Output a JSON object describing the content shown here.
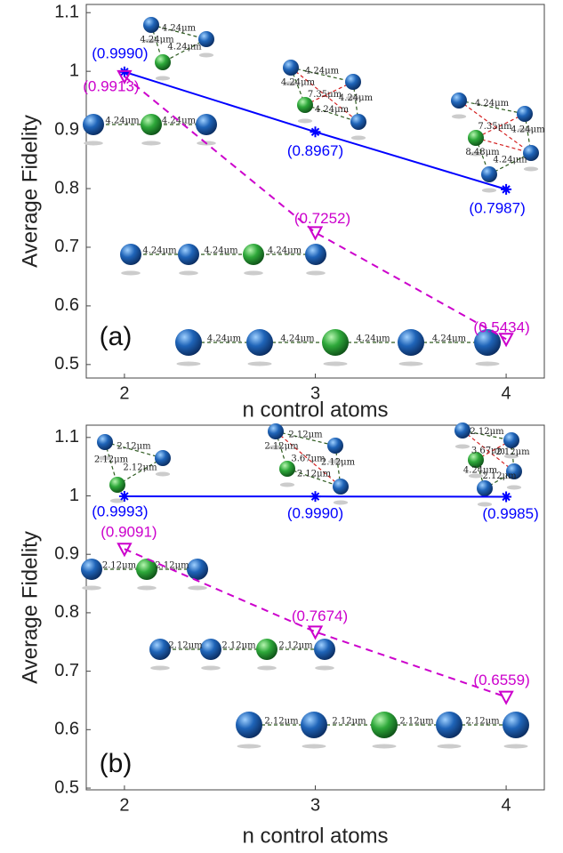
{
  "chart_data": [
    {
      "type": "line",
      "panel_label": "(a)",
      "xlabel": "n control atoms",
      "ylabel": "Average Fidelity",
      "x": [
        2,
        3,
        4
      ],
      "xlim": [
        1.8,
        4.2
      ],
      "xticks": [
        2,
        3,
        4
      ],
      "ylim": [
        0.477,
        1.114
      ],
      "yticks": [
        0.5,
        0.6,
        0.7,
        0.8,
        0.9,
        1,
        1.1
      ],
      "series": [
        {
          "color": "#0000ff",
          "linestyle": "solid",
          "marker": "asterisk",
          "values": [
            0.999,
            0.8967,
            0.7987
          ],
          "value_labels": [
            "(0.9990)",
            "(0.8967)",
            "(0.7987)"
          ]
        },
        {
          "color": "#cc00cc",
          "linestyle": "dashed",
          "marker": "triangle",
          "values": [
            0.9913,
            0.7252,
            0.5434
          ],
          "value_labels": [
            "(0.9913)",
            "(0.7252)",
            "(0.5434)"
          ]
        }
      ],
      "annotations": [
        "4.24μm",
        "7.35μm",
        "8.48μm"
      ]
    },
    {
      "type": "line",
      "panel_label": "(b)",
      "xlabel": "n control atoms",
      "ylabel": "Average Fidelity",
      "x": [
        2,
        3,
        4
      ],
      "xlim": [
        1.8,
        4.2
      ],
      "xticks": [
        2,
        3,
        4
      ],
      "ylim": [
        0.497,
        1.121
      ],
      "yticks": [
        0.5,
        0.6,
        0.7,
        0.8,
        0.9,
        1,
        1.1
      ],
      "series": [
        {
          "color": "#0000ff",
          "linestyle": "solid",
          "marker": "asterisk",
          "values": [
            0.9993,
            0.999,
            0.9985
          ],
          "value_labels": [
            "(0.9993)",
            "(0.9990)",
            "(0.9985)"
          ]
        },
        {
          "color": "#cc00cc",
          "linestyle": "dashed",
          "marker": "triangle",
          "values": [
            0.9091,
            0.7674,
            0.6559
          ],
          "value_labels": [
            "(0.9091)",
            "(0.7674)",
            "(0.6559)"
          ]
        }
      ],
      "annotations": [
        "2.12μm",
        "3.67μm",
        "4.24μm"
      ]
    }
  ]
}
